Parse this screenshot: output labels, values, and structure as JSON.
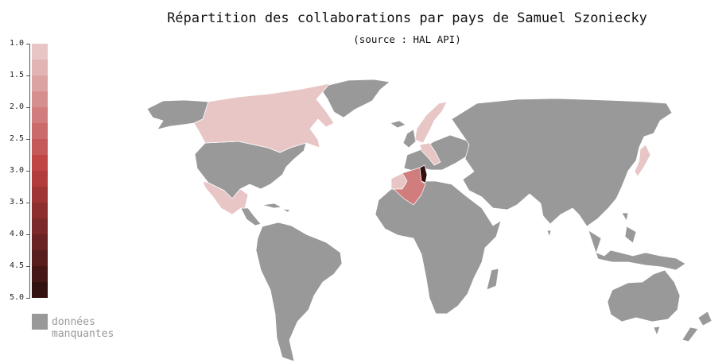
{
  "title": "Répartition des collaborations par pays de Samuel Szoniecky",
  "subtitle": "(source : HAL API)",
  "legend": {
    "ticks": [
      "1.0",
      "1.5",
      "2.0",
      "2.5",
      "3.0",
      "3.5",
      "4.0",
      "4.5",
      "5.0"
    ],
    "range": [
      1.0,
      5.0
    ],
    "color_steps": [
      "#e8c6c6",
      "#e2b4b4",
      "#dca3a3",
      "#d68f8f",
      "#d17d7d",
      "#cb6a6a",
      "#c55858",
      "#c04545",
      "#b23b3b",
      "#a03535",
      "#8e2f2f",
      "#7c2929",
      "#6a2323",
      "#581d1d",
      "#461717",
      "#341111"
    ],
    "missing_label": "données manquantes",
    "missing_color": "#999999"
  },
  "map_data": {
    "type": "choropleth",
    "metric": "collaborations",
    "countries": [
      {
        "name": "Canada",
        "value": 1
      },
      {
        "name": "Mexico",
        "value": 1
      },
      {
        "name": "Sweden",
        "value": 1
      },
      {
        "name": "Norway",
        "value": 1
      },
      {
        "name": "Italy",
        "value": 1
      },
      {
        "name": "Morocco",
        "value": 1
      },
      {
        "name": "Japan",
        "value": 1
      },
      {
        "name": "Algeria",
        "value": 2
      },
      {
        "name": "Tunisia",
        "value": 5
      }
    ]
  }
}
